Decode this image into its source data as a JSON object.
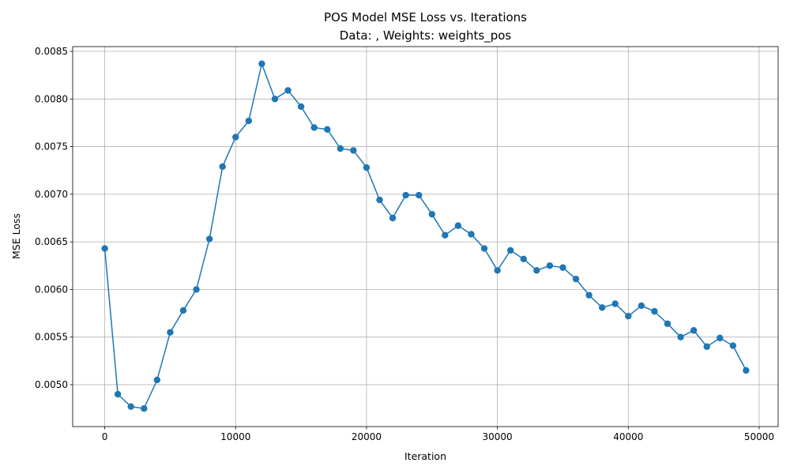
{
  "chart_data": {
    "type": "line",
    "title_line1": "POS Model MSE Loss vs. Iterations",
    "title_line2": "Data: , Weights: weights_pos",
    "xlabel": "Iteration",
    "ylabel": "MSE Loss",
    "xlim": [
      -2450,
      51450
    ],
    "ylim": [
      0.00456,
      0.00855
    ],
    "xticks": [
      0,
      10000,
      20000,
      30000,
      40000,
      50000
    ],
    "xtick_labels": [
      "0",
      "10000",
      "20000",
      "30000",
      "40000",
      "50000"
    ],
    "yticks": [
      0.005,
      0.0055,
      0.006,
      0.0065,
      0.007,
      0.0075,
      0.008,
      0.0085
    ],
    "ytick_labels": [
      "0.0050",
      "0.0055",
      "0.0060",
      "0.0065",
      "0.0070",
      "0.0075",
      "0.0080",
      "0.0085"
    ],
    "grid": true,
    "color": "#1f77b4",
    "marker": "circle",
    "x": [
      0,
      1000,
      2000,
      3000,
      4000,
      5000,
      6000,
      7000,
      8000,
      9000,
      10000,
      11000,
      12000,
      13000,
      14000,
      15000,
      16000,
      17000,
      18000,
      19000,
      20000,
      21000,
      22000,
      23000,
      24000,
      25000,
      26000,
      27000,
      28000,
      29000,
      30000,
      31000,
      32000,
      33000,
      34000,
      35000,
      36000,
      37000,
      38000,
      39000,
      40000,
      41000,
      42000,
      43000,
      44000,
      45000,
      46000,
      47000,
      48000,
      49000
    ],
    "y": [
      0.00643,
      0.0049,
      0.00477,
      0.00475,
      0.00505,
      0.00555,
      0.00578,
      0.006,
      0.00653,
      0.00729,
      0.0076,
      0.00777,
      0.00837,
      0.008,
      0.00809,
      0.00792,
      0.0077,
      0.00768,
      0.00748,
      0.00746,
      0.00728,
      0.00694,
      0.00675,
      0.00699,
      0.00699,
      0.00679,
      0.00657,
      0.00667,
      0.00658,
      0.00643,
      0.0062,
      0.00641,
      0.00632,
      0.0062,
      0.00625,
      0.00623,
      0.00611,
      0.00594,
      0.00581,
      0.00585,
      0.00572,
      0.00583,
      0.00577,
      0.00564,
      0.0055,
      0.00557,
      0.0054,
      0.00549,
      0.00541,
      0.00515
    ]
  }
}
